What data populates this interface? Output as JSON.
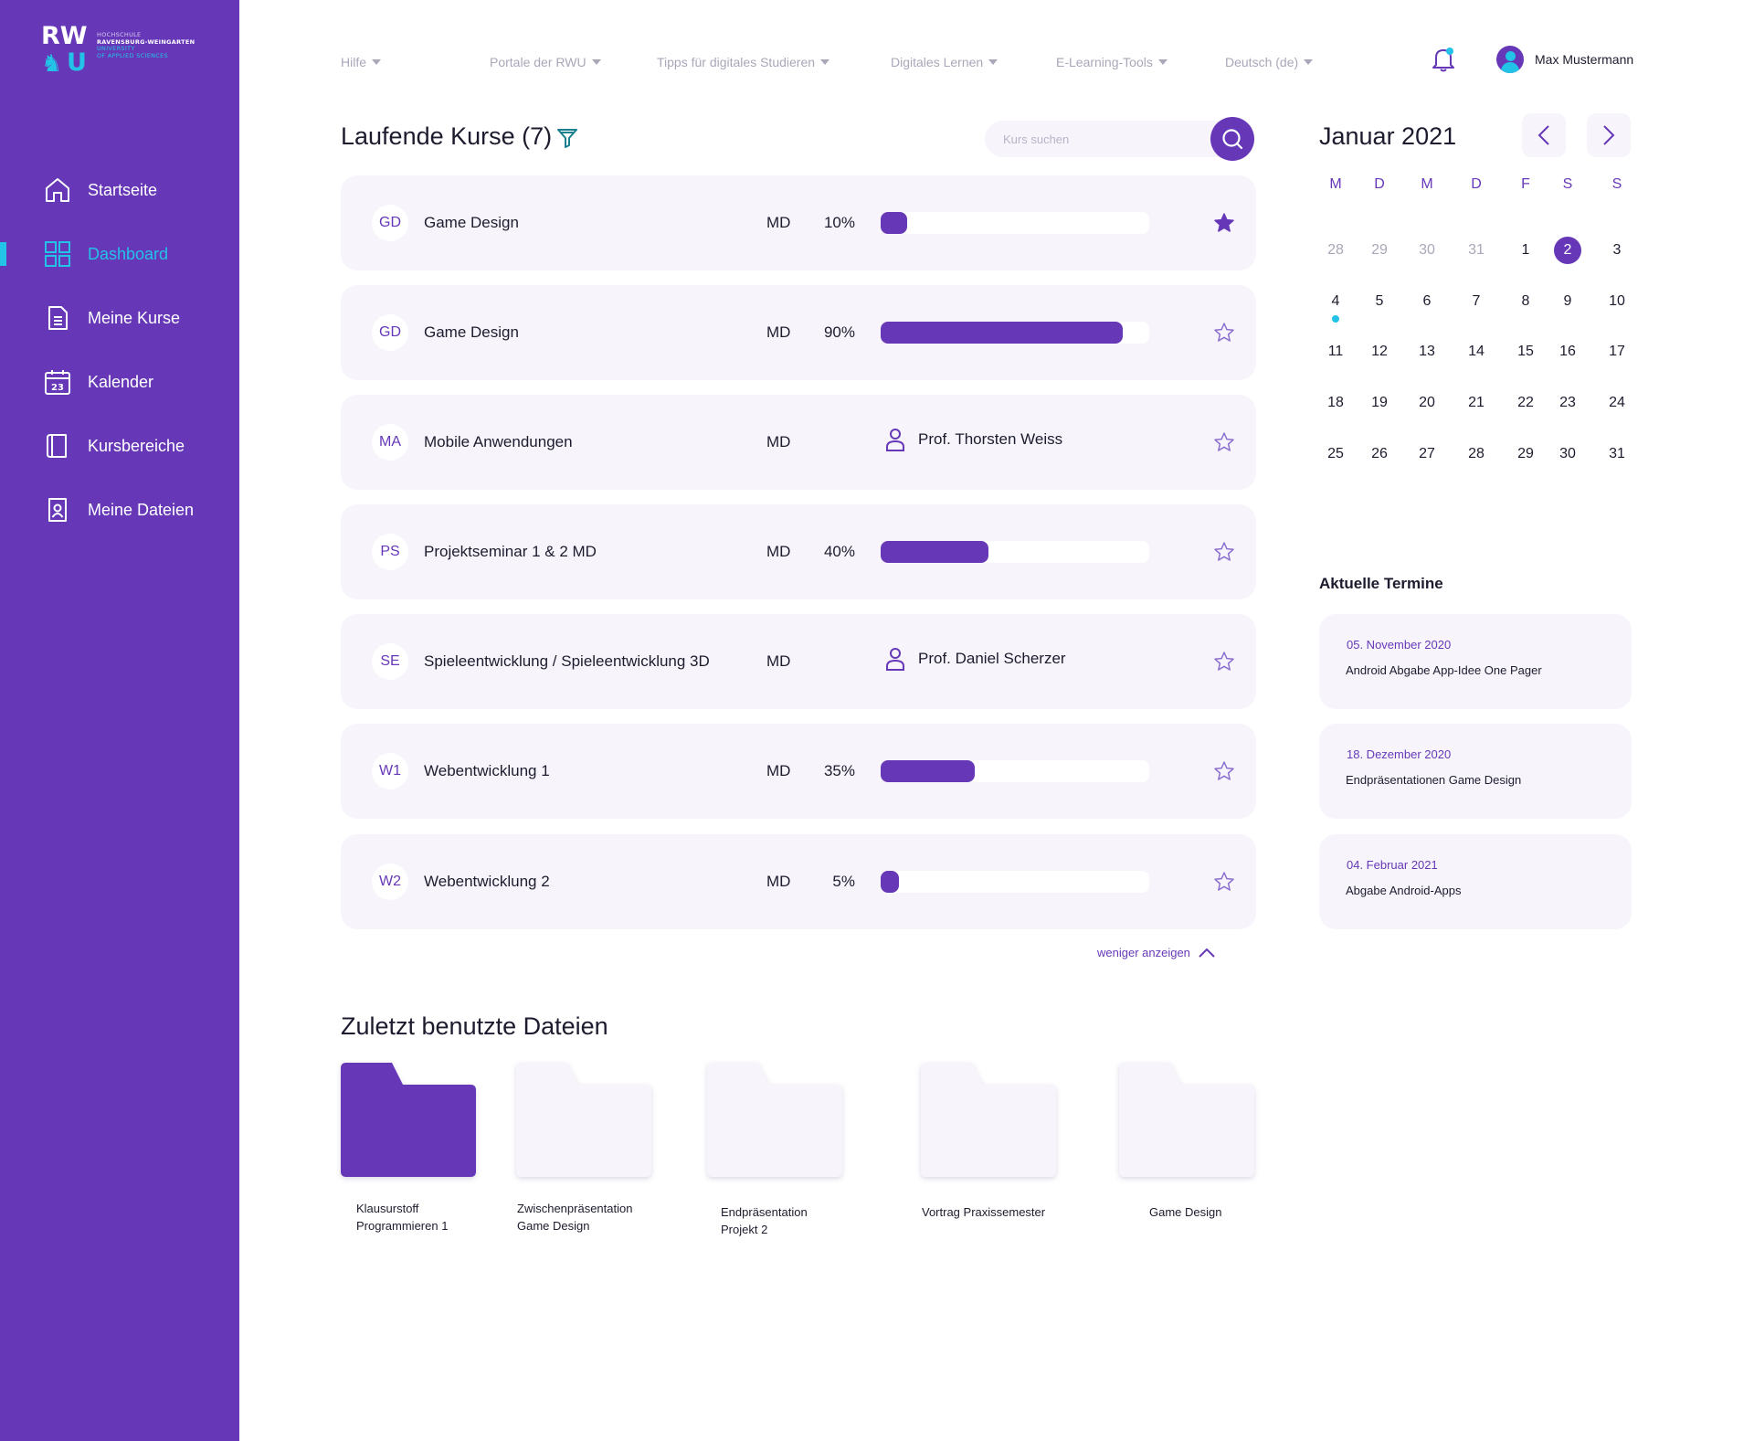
{
  "logo": {
    "letters_top": "RW",
    "letters_bottom": "U",
    "line1": "HOCHSCHULE",
    "line2": "RAVENSBURG-WEINGARTEN",
    "line3": "UNIVERSITY",
    "line4": "OF APPLIED SCIENCES"
  },
  "sidebar": {
    "items": [
      {
        "label": "Startseite",
        "icon": "home-icon",
        "active": false
      },
      {
        "label": "Dashboard",
        "icon": "dashboard-icon",
        "active": true
      },
      {
        "label": "Meine Kurse",
        "icon": "document-icon",
        "active": false
      },
      {
        "label": "Kalender",
        "icon": "calendar-icon",
        "active": false
      },
      {
        "label": "Kursbereiche",
        "icon": "book-icon",
        "active": false
      },
      {
        "label": "Meine Dateien",
        "icon": "user-file-icon",
        "active": false
      }
    ]
  },
  "topbar": {
    "items": [
      {
        "label": "Hilfe"
      },
      {
        "label": "Portale der RWU"
      },
      {
        "label": "Tipps für digitales Studieren"
      },
      {
        "label": "Digitales Lernen"
      },
      {
        "label": "E-Learning-Tools"
      },
      {
        "label": "Deutsch (de)"
      }
    ],
    "user_name": "Max Mustermann"
  },
  "courses": {
    "title": "Laufende Kurse (7)",
    "search_placeholder": "Kurs suchen",
    "show_less": "weniger anzeigen",
    "items": [
      {
        "badge": "GD",
        "name": "Game Design",
        "dept": "MD",
        "progress_label": "10%",
        "progress": 0.1,
        "starred": true
      },
      {
        "badge": "GD",
        "name": "Game Design",
        "dept": "MD",
        "progress_label": "90%",
        "progress": 0.9,
        "starred": false
      },
      {
        "badge": "MA",
        "name": "Mobile Anwendungen",
        "dept": "MD",
        "professor": "Prof. Thorsten Weiss",
        "starred": false
      },
      {
        "badge": "PS",
        "name": "Projektseminar 1 & 2 MD",
        "dept": "MD",
        "progress_label": "40%",
        "progress": 0.4,
        "starred": false
      },
      {
        "badge": "SE",
        "name": "Spieleentwicklung / Spieleentwicklung 3D",
        "dept": "MD",
        "professor": "Prof. Daniel Scherzer",
        "starred": false
      },
      {
        "badge": "W1",
        "name": "Webentwicklung 1",
        "dept": "MD",
        "progress_label": "35%",
        "progress": 0.35,
        "starred": false
      },
      {
        "badge": "W2",
        "name": "Webentwicklung 2",
        "dept": "MD",
        "progress_label": "5%",
        "progress": 0.05,
        "starred": false
      }
    ]
  },
  "files": {
    "title": "Zuletzt benutzte Dateien",
    "items": [
      {
        "line1": "Klausurstoff",
        "line2": "Programmieren 1",
        "selected": true
      },
      {
        "line1": "Zwischenpräsentation",
        "line2": "Game Design",
        "selected": false
      },
      {
        "line1": "Endpräsentation",
        "line2": "Projekt 2",
        "selected": false
      },
      {
        "line1": "Vortrag Praxissemester",
        "line2": "",
        "selected": false
      },
      {
        "line1": "Game Design",
        "line2": "",
        "selected": false
      }
    ]
  },
  "calendar": {
    "title": "Januar 2021",
    "weekdays": [
      "M",
      "D",
      "M",
      "D",
      "F",
      "S",
      "S"
    ],
    "weeks": [
      [
        {
          "d": "28",
          "muted": true
        },
        {
          "d": "29",
          "muted": true
        },
        {
          "d": "30",
          "muted": true
        },
        {
          "d": "31",
          "muted": true
        },
        {
          "d": "1"
        },
        {
          "d": "2",
          "today": true
        },
        {
          "d": "3"
        }
      ],
      [
        {
          "d": "4",
          "event": true
        },
        {
          "d": "5"
        },
        {
          "d": "6"
        },
        {
          "d": "7"
        },
        {
          "d": "8"
        },
        {
          "d": "9"
        },
        {
          "d": "10"
        }
      ],
      [
        {
          "d": "11"
        },
        {
          "d": "12"
        },
        {
          "d": "13"
        },
        {
          "d": "14"
        },
        {
          "d": "15"
        },
        {
          "d": "16"
        },
        {
          "d": "17"
        }
      ],
      [
        {
          "d": "18"
        },
        {
          "d": "19"
        },
        {
          "d": "20"
        },
        {
          "d": "21"
        },
        {
          "d": "22"
        },
        {
          "d": "23"
        },
        {
          "d": "24"
        }
      ],
      [
        {
          "d": "25"
        },
        {
          "d": "26"
        },
        {
          "d": "27"
        },
        {
          "d": "28"
        },
        {
          "d": "29"
        },
        {
          "d": "30"
        },
        {
          "d": "31"
        }
      ]
    ]
  },
  "events": {
    "title": "Aktuelle Termine",
    "items": [
      {
        "date": "05. November 2020",
        "text": "Android Abgabe App-Idee One Pager"
      },
      {
        "date": "18. Dezember 2020",
        "text": "Endpräsentationen Game Design"
      },
      {
        "date": "04. Februar 2021",
        "text": "Abgabe Android-Apps"
      }
    ]
  },
  "colors": {
    "primary": "#6638b8",
    "accent": "#22c3e6",
    "card": "#f7f5fb",
    "muted": "#a9a7b8"
  }
}
